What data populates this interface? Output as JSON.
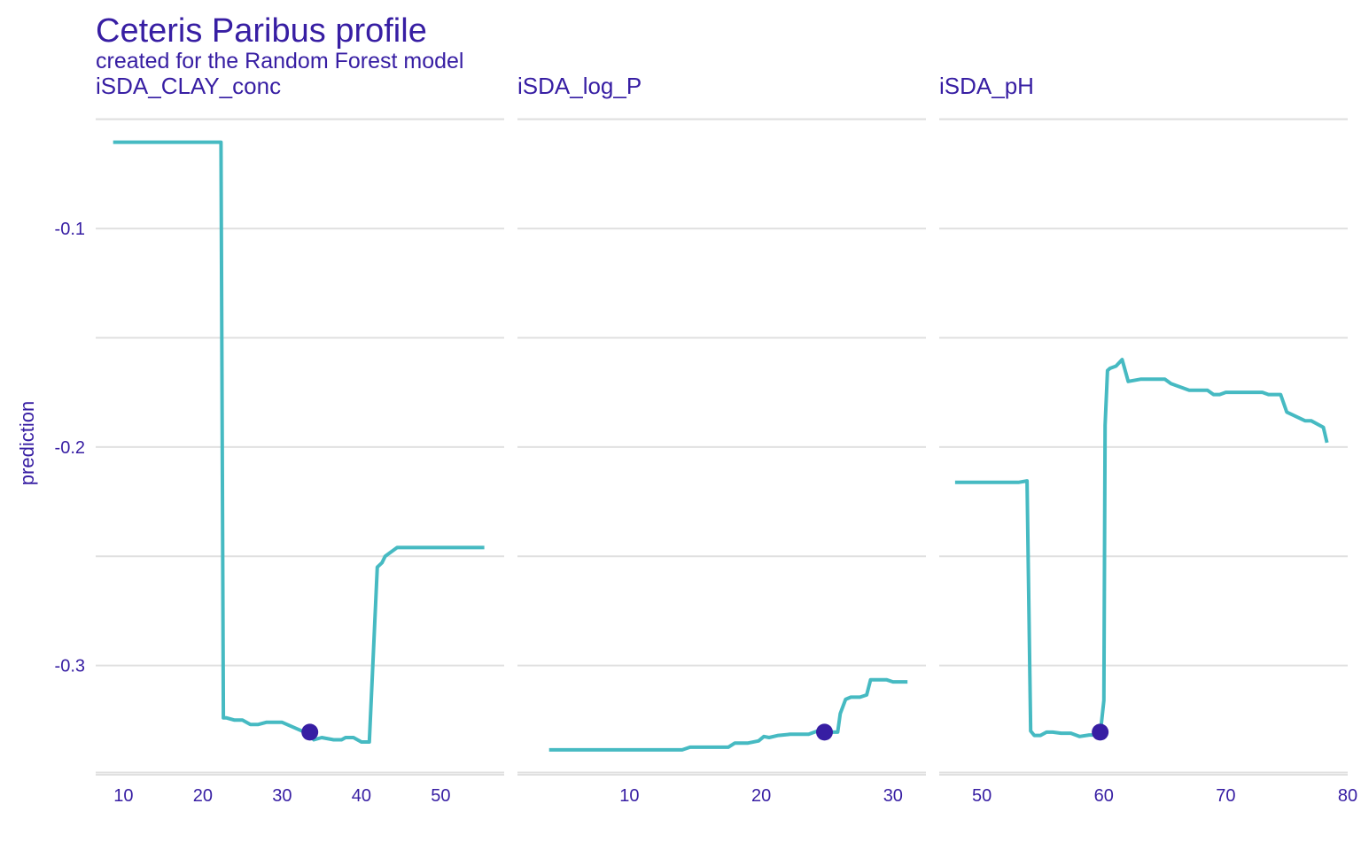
{
  "title": "Ceteris Paribus profile",
  "subtitle": "created for the Random Forest model",
  "colors": {
    "text": "#371ea3",
    "line": "#46bac2",
    "point": "#371ea3",
    "grid": "#e0e0e0"
  },
  "chart_data": {
    "type": "line",
    "ylabel": "prediction",
    "ylim": [
      -0.35,
      -0.04
    ],
    "yticks": [
      -0.1,
      -0.2,
      -0.3
    ],
    "ytick_labels": [
      "-0.1",
      "-0.2",
      "-0.3"
    ],
    "grid": true,
    "panels": [
      {
        "name": "iSDA_CLAY_conc",
        "label": "iSDA_CLAY_conc",
        "xlim": [
          6.5,
          58
        ],
        "xticks": [
          10,
          20,
          30,
          40,
          50
        ],
        "xtick_labels": [
          "10",
          "20",
          "30",
          "40",
          "50"
        ],
        "x": [
          8.7,
          22.3,
          22.6,
          23.0,
          24.0,
          25.0,
          26.0,
          27.0,
          28.0,
          30.0,
          32.5,
          33.3,
          34.0,
          35.0,
          36.5,
          37.5,
          38.0,
          39.0,
          40.0,
          41.0,
          42.0,
          42.6,
          43.0,
          44.5,
          45.0,
          50.0,
          55.5
        ],
        "y": [
          -0.0605,
          -0.0605,
          -0.324,
          -0.324,
          -0.325,
          -0.325,
          -0.327,
          -0.327,
          -0.326,
          -0.326,
          -0.33,
          -0.33,
          -0.334,
          -0.333,
          -0.334,
          -0.334,
          -0.333,
          -0.333,
          -0.335,
          -0.335,
          -0.255,
          -0.253,
          -0.25,
          -0.246,
          -0.246,
          -0.246,
          -0.246
        ],
        "observation": {
          "x": 33.5,
          "y": -0.3305
        }
      },
      {
        "name": "iSDA_log_P",
        "label": "iSDA_log_P",
        "xlim": [
          1.5,
          32.5
        ],
        "xticks": [
          10,
          20,
          30
        ],
        "xtick_labels": [
          "10",
          "20",
          "30"
        ],
        "x": [
          3.9,
          14.0,
          14.6,
          17.5,
          18.0,
          19.0,
          19.8,
          20.2,
          20.6,
          21.3,
          22.2,
          23.6,
          24.5,
          25.2,
          25.8,
          26.0,
          26.4,
          26.8,
          27.5,
          28.0,
          28.3,
          29.5,
          30.0,
          31.1
        ],
        "y": [
          -0.3386,
          -0.3386,
          -0.3374,
          -0.3374,
          -0.3355,
          -0.3355,
          -0.3345,
          -0.3325,
          -0.333,
          -0.332,
          -0.3315,
          -0.3315,
          -0.3295,
          -0.3305,
          -0.3305,
          -0.322,
          -0.3155,
          -0.3145,
          -0.3145,
          -0.3135,
          -0.3065,
          -0.3065,
          -0.3075,
          -0.3075
        ],
        "observation": {
          "x": 24.8,
          "y": -0.3305
        }
      },
      {
        "name": "iSDA_pH",
        "label": "iSDA_pH",
        "xlim": [
          46.5,
          80
        ],
        "xticks": [
          50,
          60,
          70,
          80
        ],
        "xtick_labels": [
          "50",
          "60",
          "70",
          "80"
        ],
        "x": [
          47.8,
          53.0,
          53.7,
          54.0,
          54.3,
          54.8,
          55.3,
          55.8,
          56.5,
          57.3,
          58.0,
          58.8,
          59.7,
          60.0,
          60.1,
          60.3,
          60.5,
          61.0,
          61.5,
          62.0,
          63.0,
          64.0,
          65.0,
          65.5,
          66.0,
          67.0,
          68.5,
          69.0,
          69.5,
          70.0,
          71.5,
          73.0,
          73.5,
          74.5,
          75.0,
          76.5,
          77.0,
          78.0,
          78.3
        ],
        "y": [
          -0.2162,
          -0.2162,
          -0.2155,
          -0.33,
          -0.332,
          -0.332,
          -0.3305,
          -0.3305,
          -0.331,
          -0.331,
          -0.3325,
          -0.3318,
          -0.3318,
          -0.316,
          -0.19,
          -0.165,
          -0.164,
          -0.163,
          -0.16,
          -0.17,
          -0.169,
          -0.169,
          -0.169,
          -0.171,
          -0.172,
          -0.174,
          -0.174,
          -0.176,
          -0.176,
          -0.175,
          -0.175,
          -0.175,
          -0.176,
          -0.176,
          -0.184,
          -0.188,
          -0.188,
          -0.191,
          -0.198
        ],
        "observation": {
          "x": 59.7,
          "y": -0.3305
        }
      }
    ]
  }
}
